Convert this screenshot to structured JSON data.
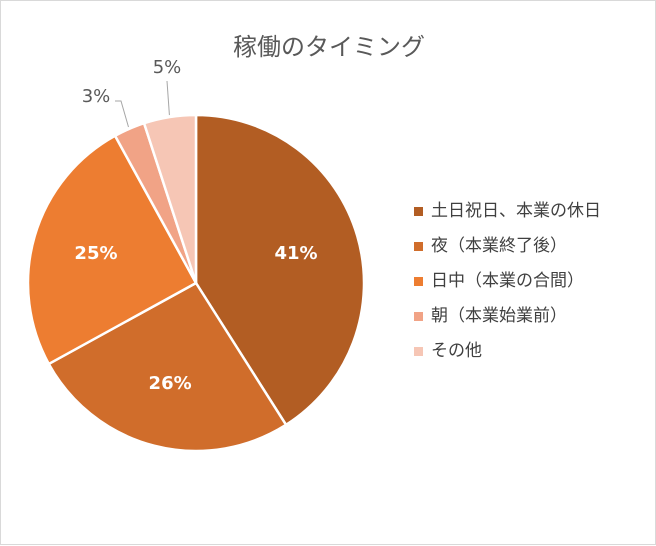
{
  "chart_data": {
    "type": "pie",
    "title": "稼働のタイミング",
    "categories": [
      "土日祝日、本業の休日",
      "夜（本業終了後）",
      "日中（本業の合間）",
      "朝（本業始業前）",
      "その他"
    ],
    "values": [
      41,
      26,
      25,
      3,
      5
    ],
    "data_labels": [
      "41%",
      "26%",
      "25%",
      "3%",
      "5%"
    ],
    "colors": [
      "#B25D23",
      "#D06D2B",
      "#ED7D31",
      "#F1A386",
      "#F6C6B5"
    ],
    "legend_position": "right",
    "label_colors": {
      "inside": "#ffffff",
      "outside": "#595959"
    }
  }
}
